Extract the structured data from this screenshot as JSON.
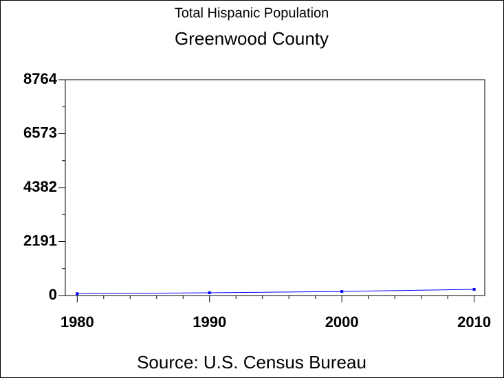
{
  "chart_data": {
    "type": "line",
    "title": "Total Hispanic Population",
    "subtitle": "Greenwood County",
    "source": "Source: U.S. Census Bureau",
    "x": [
      1980,
      1990,
      2000,
      2010
    ],
    "series": [
      {
        "name": "Hispanic Population",
        "color": "#0000ff",
        "values": [
          75,
          110,
          165,
          250
        ]
      }
    ],
    "xlim": [
      1979.1,
      2010.8
    ],
    "xticks": [
      1980,
      1990,
      2000,
      2010
    ],
    "ylim": [
      0,
      8764
    ],
    "yticks": [
      0,
      2191,
      4382,
      6573,
      8764
    ]
  }
}
